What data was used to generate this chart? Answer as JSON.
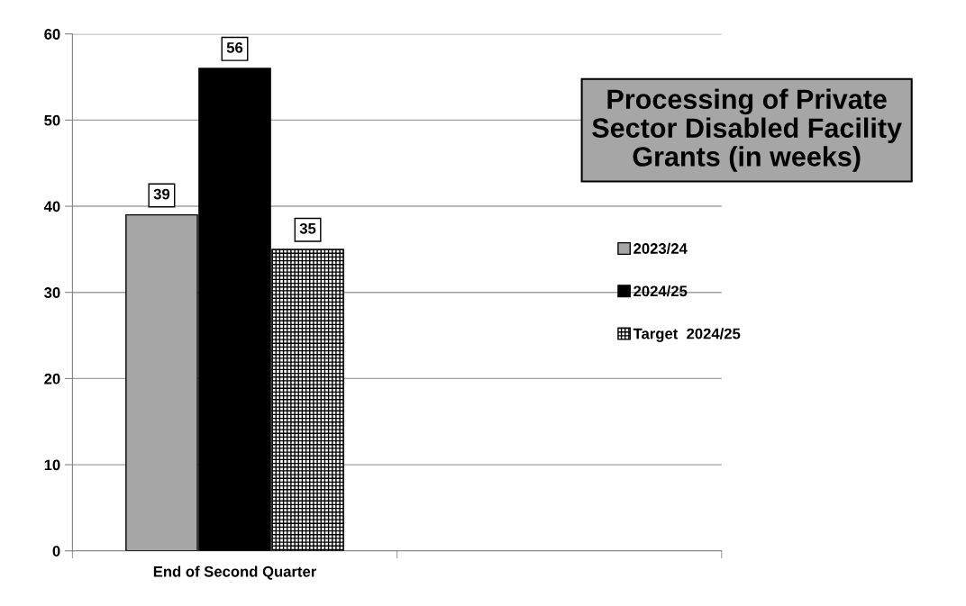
{
  "chart_data": {
    "type": "bar",
    "title": "Processing of Private\nSector Disabled Facility\nGrants (in weeks)",
    "categories": [
      "End of Second Quarter",
      null
    ],
    "series": [
      {
        "name": "2023/24",
        "color": "#a6a6a6",
        "values": [
          39,
          null
        ]
      },
      {
        "name": "2024/25",
        "color": "#000000",
        "values": [
          56,
          null
        ]
      },
      {
        "name": "Target  2024/25",
        "color": "#000000",
        "values": [
          35,
          null
        ]
      }
    ],
    "ylim": [
      0,
      60
    ],
    "yticks": [
      0,
      10,
      20,
      30,
      40,
      50,
      60
    ],
    "grid": "y",
    "legend": "center right",
    "data_labels": true
  }
}
